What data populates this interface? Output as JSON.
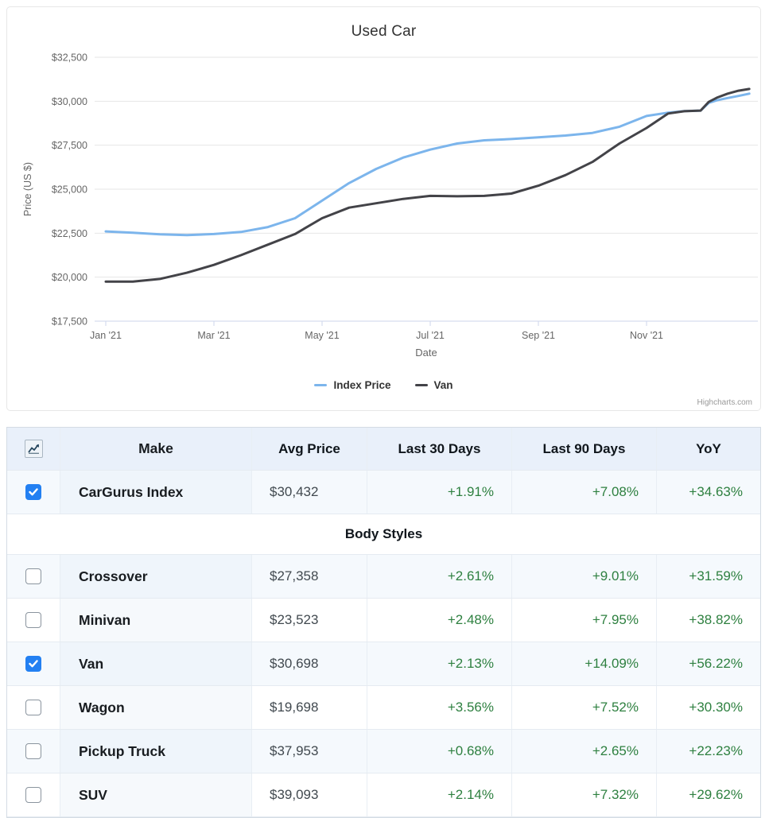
{
  "chart": {
    "title": "Used Car",
    "credit": "Highcharts.com"
  },
  "chart_data": {
    "type": "line",
    "title": "Used Car",
    "xlabel": "Date",
    "ylabel": "Price (US $)",
    "ylim": [
      17500,
      32500
    ],
    "ytick_interval": 2500,
    "ytick_prefix": "$",
    "grid": true,
    "legend_position": "bottom",
    "xticks": [
      "Jan '21",
      "Mar '21",
      "May '21",
      "Jul '21",
      "Sep '21",
      "Nov '21"
    ],
    "x_unit": "months since Jan 1 2021",
    "series": [
      {
        "name": "Index Price",
        "color": "#7cb5ec",
        "x": [
          0,
          0.5,
          1,
          1.5,
          2,
          2.5,
          3,
          3.5,
          4,
          4.5,
          5,
          5.5,
          6,
          6.5,
          7,
          7.5,
          8,
          8.5,
          9,
          9.5,
          10,
          10.4,
          10.7,
          11,
          11.15,
          11.3,
          11.5,
          11.7,
          11.9
        ],
        "values": [
          22600,
          22530,
          22440,
          22390,
          22450,
          22570,
          22850,
          23350,
          24350,
          25350,
          26150,
          26800,
          27250,
          27600,
          27780,
          27850,
          27950,
          28050,
          28200,
          28550,
          29160,
          29350,
          29440,
          29470,
          29900,
          30050,
          30180,
          30300,
          30432
        ]
      },
      {
        "name": "Van",
        "color": "#434348",
        "x": [
          0,
          0.5,
          1,
          1.5,
          2,
          2.5,
          3,
          3.5,
          4,
          4.5,
          5,
          5.5,
          6,
          6.5,
          7,
          7.5,
          8,
          8.5,
          9,
          9.5,
          10,
          10.4,
          10.7,
          11,
          11.15,
          11.3,
          11.5,
          11.7,
          11.9
        ],
        "values": [
          19750,
          19750,
          19900,
          20250,
          20700,
          21250,
          21850,
          22450,
          23350,
          23950,
          24200,
          24450,
          24620,
          24600,
          24620,
          24750,
          25200,
          25800,
          26550,
          27600,
          28480,
          29300,
          29430,
          29470,
          29960,
          30200,
          30430,
          30600,
          30698
        ]
      }
    ]
  },
  "table": {
    "columns": [
      "Make",
      "Avg Price",
      "Last 30 Days",
      "Last 90 Days",
      "YoY"
    ],
    "header_icon": "sparkline-chart-icon",
    "rows": [
      {
        "checked": true,
        "make": "CarGurus Index",
        "avg_price": "$30,432",
        "last_30": "+1.91%",
        "last_90": "+7.08%",
        "yoy": "+34.63%"
      },
      {
        "section": "Body Styles"
      },
      {
        "checked": false,
        "make": "Crossover",
        "avg_price": "$27,358",
        "last_30": "+2.61%",
        "last_90": "+9.01%",
        "yoy": "+31.59%"
      },
      {
        "checked": false,
        "make": "Minivan",
        "avg_price": "$23,523",
        "last_30": "+2.48%",
        "last_90": "+7.95%",
        "yoy": "+38.82%"
      },
      {
        "checked": true,
        "make": "Van",
        "avg_price": "$30,698",
        "last_30": "+2.13%",
        "last_90": "+14.09%",
        "yoy": "+56.22%"
      },
      {
        "checked": false,
        "make": "Wagon",
        "avg_price": "$19,698",
        "last_30": "+3.56%",
        "last_90": "+7.52%",
        "yoy": "+30.30%"
      },
      {
        "checked": false,
        "make": "Pickup Truck",
        "avg_price": "$37,953",
        "last_30": "+0.68%",
        "last_90": "+2.65%",
        "yoy": "+22.23%"
      },
      {
        "checked": false,
        "make": "SUV",
        "avg_price": "$39,093",
        "last_30": "+2.14%",
        "last_90": "+7.32%",
        "yoy": "+29.62%"
      }
    ]
  },
  "colors": {
    "series_index_price": "#7cb5ec",
    "series_van": "#434348",
    "positive_green": "#2e8040",
    "checkbox_blue": "#2380f2",
    "header_bg": "#e9f0fa",
    "stripe_bg": "#f5f9fd",
    "gridline": "#e6e6e6",
    "axis_line": "#ccd6eb",
    "axis_text": "#666666"
  }
}
